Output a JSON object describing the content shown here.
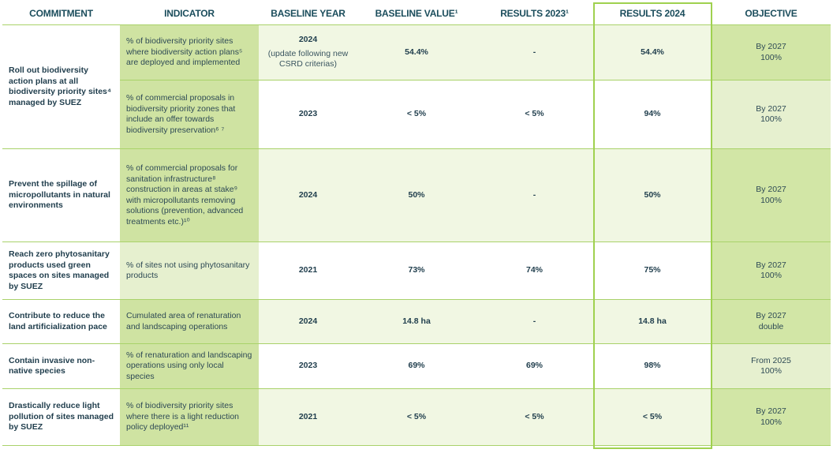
{
  "header": {
    "columns": [
      "COMMITMENT",
      "INDICATOR",
      "BASELINE YEAR",
      "BASELINE VALUE¹",
      "RESULTS 2023¹",
      "RESULTS 2024",
      "OBJECTIVE"
    ]
  },
  "commitments": [
    {
      "title": "Roll out biodiversity action plans at all biodiversity priority sites⁴ managed by SUEZ",
      "indicators": [
        {
          "indicator": "% of biodiversity priority sites where biodiversity action plans⁵ are deployed and implemented",
          "baseline_year": "2024",
          "baseline_year_note": "(update following new CSRD criterias)",
          "baseline_value": "54.4%",
          "results_2023": "-",
          "results_2024": "54.4%",
          "objective": [
            "By 2027",
            "100%"
          ]
        },
        {
          "indicator": "% of commercial proposals in biodiversity priority zones that include an offer towards biodiversity preservation⁶ ⁷",
          "baseline_year": "2023",
          "baseline_value": "< 5%",
          "results_2023": "< 5%",
          "results_2024": "94%",
          "objective": [
            "By 2027",
            "100%"
          ]
        }
      ]
    },
    {
      "title": "Prevent the spillage of micropollutants in natural environments",
      "indicators": [
        {
          "indicator": "% of commercial proposals for sanitation infrastructure⁸ construction in areas at stake⁹ with micropollutants removing solutions (prevention, advanced treatments etc.)¹⁰",
          "baseline_year": "2024",
          "baseline_value": "50%",
          "results_2023": "-",
          "results_2024": "50%",
          "objective": [
            "By 2027",
            "100%"
          ]
        }
      ]
    },
    {
      "title": "Reach zero phytosanitary products used green spaces on sites managed by SUEZ",
      "indicators": [
        {
          "indicator": "% of sites not using phytosanitary products",
          "baseline_year": "2021",
          "baseline_value": "73%",
          "results_2023": "74%",
          "results_2024": "75%",
          "objective": [
            "By 2027",
            "100%"
          ]
        }
      ]
    },
    {
      "title": "Contribute to reduce the land artificialization pace",
      "indicators": [
        {
          "indicator": "Cumulated area of renaturation and landscaping operations",
          "baseline_year": "2024",
          "baseline_value": "14.8 ha",
          "results_2023": "-",
          "results_2024": "14.8 ha",
          "objective": [
            "By 2027",
            "double"
          ]
        }
      ]
    },
    {
      "title": "Contain invasive non-native species",
      "indicators": [
        {
          "indicator": "% of renaturation and landscaping operations using only local species",
          "baseline_year": "2023",
          "baseline_value": "69%",
          "results_2023": "69%",
          "results_2024": "98%",
          "objective": [
            "From 2025",
            "100%"
          ]
        }
      ]
    },
    {
      "title": "Drastically reduce light pollution of sites managed by SUEZ",
      "indicators": [
        {
          "indicator": "% of biodiversity priority sites where there is a light reduction policy deployed¹¹",
          "baseline_year": "2021",
          "baseline_value": "< 5%",
          "results_2023": "< 5%",
          "results_2024": "< 5%",
          "objective": [
            "By 2027",
            "100%"
          ]
        }
      ]
    }
  ]
}
